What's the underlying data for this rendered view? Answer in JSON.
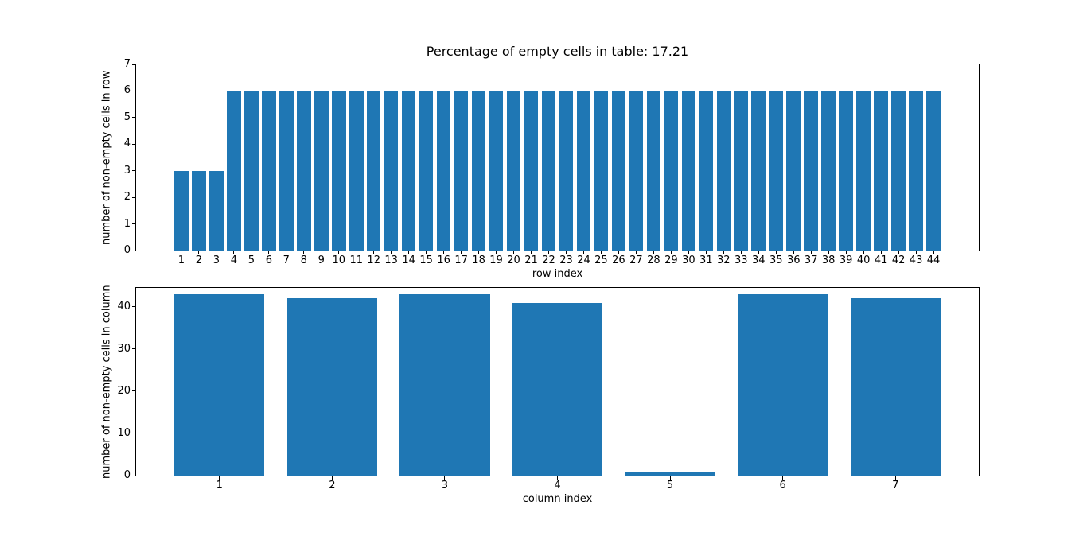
{
  "figure": {
    "background": "#ffffff",
    "bar_color": "#1f77b4",
    "axis_color": "#000000",
    "text_color": "#000000"
  },
  "chart_data": [
    {
      "type": "bar",
      "title": "Percentage of empty cells in table: 17.21",
      "xlabel": "row index",
      "ylabel": "number of non-empty cells in row",
      "categories": [
        1,
        2,
        3,
        4,
        5,
        6,
        7,
        8,
        9,
        10,
        11,
        12,
        13,
        14,
        15,
        16,
        17,
        18,
        19,
        20,
        21,
        22,
        23,
        24,
        25,
        26,
        27,
        28,
        29,
        30,
        31,
        32,
        33,
        34,
        35,
        36,
        37,
        38,
        39,
        40,
        41,
        42,
        43,
        44
      ],
      "values": [
        3,
        3,
        3,
        6,
        6,
        6,
        6,
        6,
        6,
        6,
        6,
        6,
        6,
        6,
        6,
        6,
        6,
        6,
        6,
        6,
        6,
        6,
        6,
        6,
        6,
        6,
        6,
        6,
        6,
        6,
        6,
        6,
        6,
        6,
        6,
        6,
        6,
        6,
        6,
        6,
        6,
        6,
        6,
        6
      ],
      "bar_width": 0.8,
      "xlim": [
        -1.59,
        46.59
      ],
      "ylim": [
        0,
        7
      ],
      "yticks": [
        0,
        1,
        2,
        3,
        4,
        5,
        6,
        7
      ],
      "grid": false,
      "legend": null
    },
    {
      "type": "bar",
      "title": "",
      "xlabel": "column index",
      "ylabel": "number of non-empty cells in column",
      "categories": [
        1,
        2,
        3,
        4,
        5,
        6,
        7
      ],
      "values": [
        43,
        42,
        43,
        41,
        1,
        43,
        42
      ],
      "bar_width": 0.8,
      "xlim": [
        0.26,
        7.74
      ],
      "ylim": [
        0,
        44.5
      ],
      "yticks": [
        0,
        10,
        20,
        30,
        40
      ],
      "grid": false,
      "legend": null
    }
  ]
}
